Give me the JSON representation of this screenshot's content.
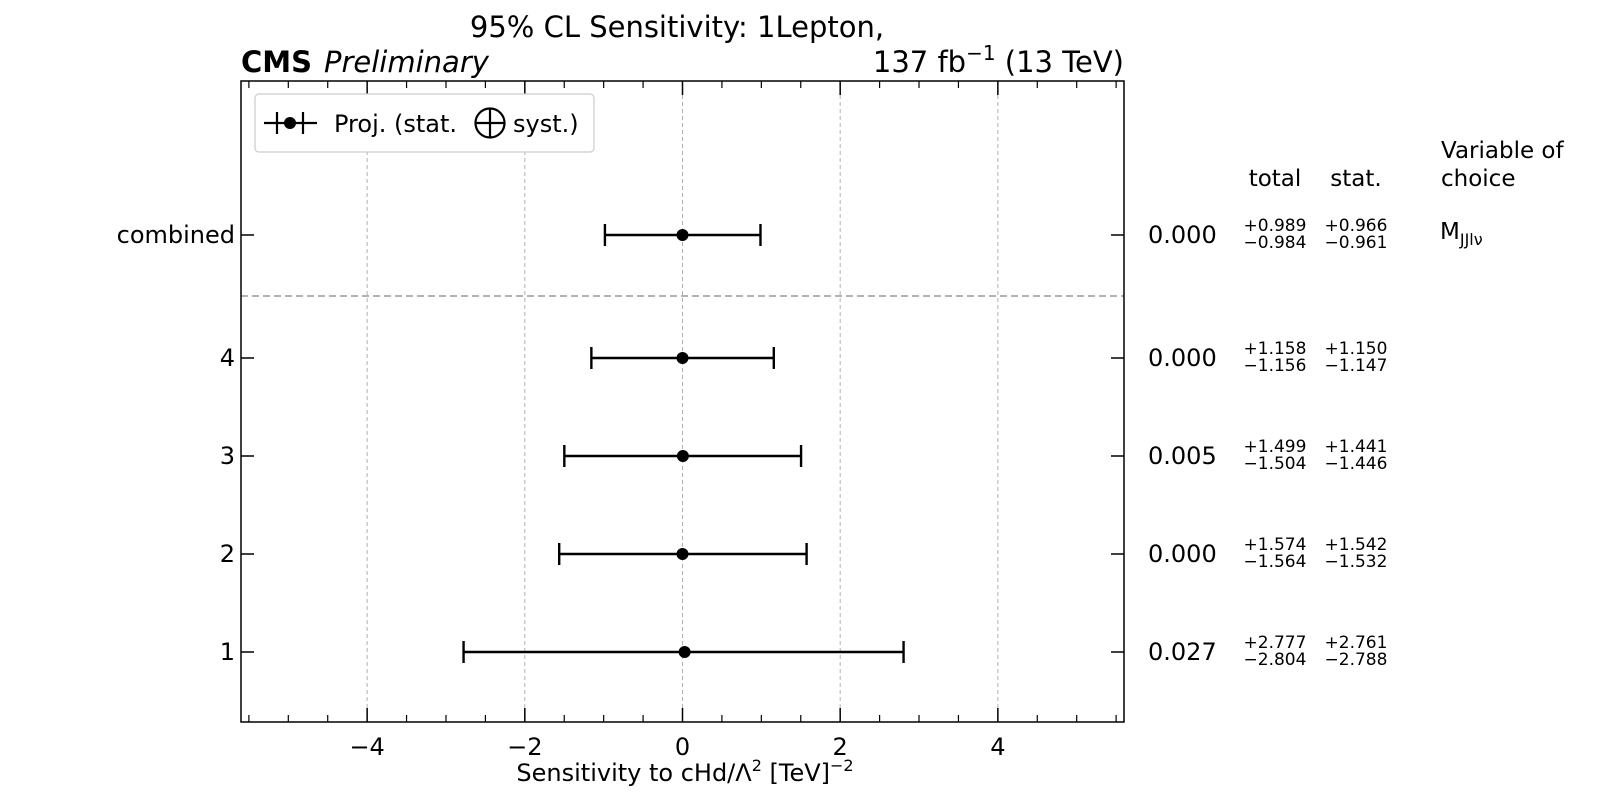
{
  "header": {
    "title": "95% CL Sensitivity: 1Lepton,",
    "experiment": "CMS",
    "status": "Preliminary",
    "lumi_value": "137 fb",
    "lumi_exp": "−1",
    "lumi_energy": " (13 TeV)"
  },
  "legend": {
    "label_before": "Proj. (stat.",
    "label_after": "syst.)"
  },
  "columns": {
    "total": "total",
    "stat": "stat.",
    "variable_line1": "Variable of",
    "variable_line2": "choice"
  },
  "chart_data": {
    "type": "scatter",
    "orientation": "horizontal",
    "xlabel": {
      "prefix": "Sensitivity to cHd/Λ",
      "prefix_exp": "2",
      "unit": " [TeV]",
      "unit_exp": "−2"
    },
    "xlim": [
      -5.6,
      5.6
    ],
    "xticks": [
      -4,
      -2,
      0,
      2,
      4
    ],
    "xtick_labels": [
      "−4",
      "−2",
      "0",
      "2",
      "4"
    ],
    "grid": true,
    "legend_position": "top-left",
    "rows": [
      {
        "label": "combined",
        "central": 0.0,
        "low": -0.984,
        "high": 0.989,
        "central_text": "0.000",
        "total_up": "+0.989",
        "total_down": "−0.984",
        "stat_up": "+0.966",
        "stat_down": "−0.961",
        "variable": "M",
        "variable_sub": "JJlν"
      },
      {
        "label": "4",
        "central": 0.0,
        "low": -1.156,
        "high": 1.158,
        "central_text": "0.000",
        "total_up": "+1.158",
        "total_down": "−1.156",
        "stat_up": "+1.150",
        "stat_down": "−1.147"
      },
      {
        "label": "3",
        "central": 0.005,
        "low": -1.499,
        "high": 1.504,
        "central_text": "0.005",
        "total_up": "+1.499",
        "total_down": "−1.504",
        "stat_up": "+1.441",
        "stat_down": "−1.446"
      },
      {
        "label": "2",
        "central": 0.0,
        "low": -1.564,
        "high": 1.574,
        "central_text": "0.000",
        "total_up": "+1.574",
        "total_down": "−1.564",
        "stat_up": "+1.542",
        "stat_down": "−1.532"
      },
      {
        "label": "1",
        "central": 0.027,
        "low": -2.777,
        "high": 2.804,
        "central_text": "0.027",
        "total_up": "+2.777",
        "total_down": "−2.804",
        "stat_up": "+2.761",
        "stat_down": "−2.788"
      }
    ]
  },
  "colors": {
    "marker": "#000000",
    "grid": "#b0b0b0",
    "separator": "#999999",
    "legend_border": "#cccccc"
  }
}
